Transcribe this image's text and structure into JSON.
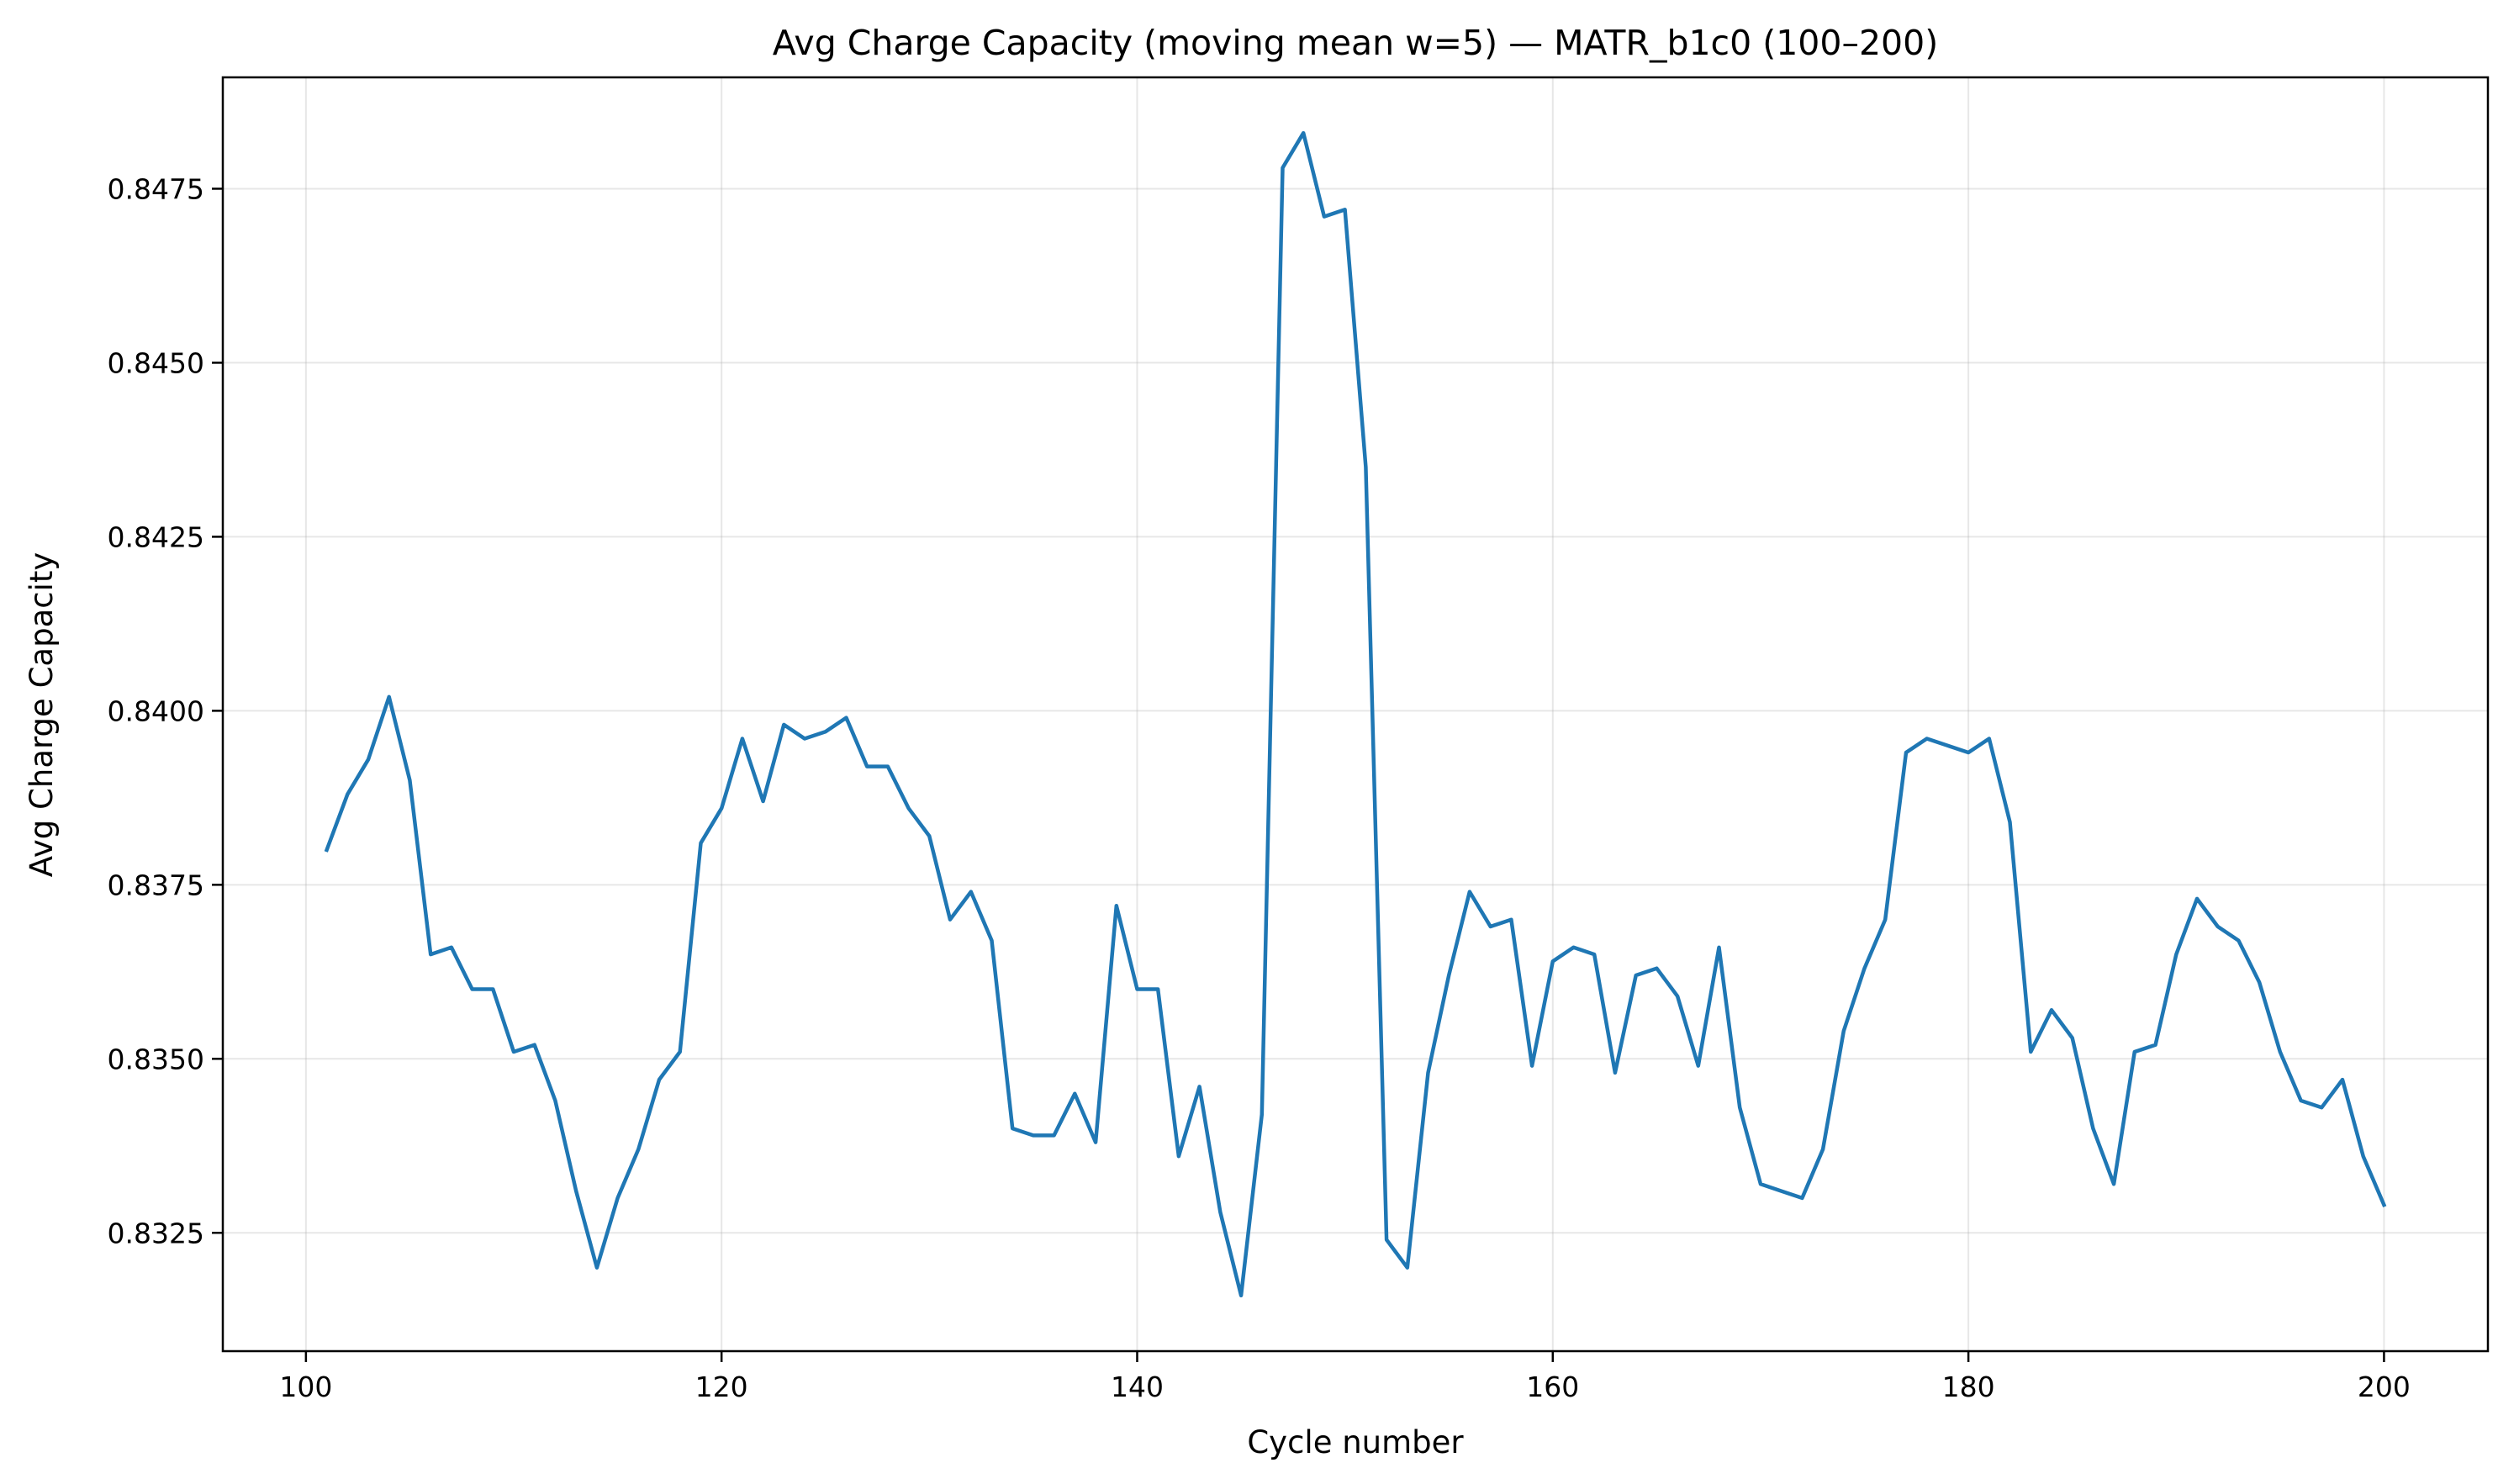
{
  "chart_data": {
    "type": "line",
    "title": "Avg Charge Capacity (moving mean w=5) — MATR_b1c0 (100–200)",
    "xlabel": "Cycle number",
    "ylabel": "Avg Charge Capacity",
    "xlim": [
      96,
      205
    ],
    "ylim": [
      0.8308,
      0.8491
    ],
    "xticks": [
      100,
      120,
      140,
      160,
      180,
      200
    ],
    "yticks": [
      0.8325,
      0.835,
      0.8375,
      0.84,
      0.8425,
      0.845,
      0.8475
    ],
    "xtick_labels": [
      "100",
      "120",
      "140",
      "160",
      "180",
      "200"
    ],
    "ytick_labels": [
      "0.8325",
      "0.8350",
      "0.8375",
      "0.8400",
      "0.8425",
      "0.8450",
      "0.8475"
    ],
    "grid": true,
    "color": "#1f77b4",
    "series": [
      {
        "x": [
          101,
          102,
          103,
          104,
          105,
          106,
          107,
          108,
          109,
          110,
          111,
          112,
          113,
          114,
          115,
          116,
          117,
          118,
          119,
          120,
          121,
          122,
          123,
          124,
          125,
          126,
          127,
          128,
          129,
          130,
          131,
          132,
          133,
          134,
          135,
          136,
          137,
          138,
          139,
          140,
          141,
          142,
          143,
          144,
          145,
          146,
          147,
          148,
          149,
          150,
          151,
          152,
          153,
          154,
          155,
          156,
          157,
          158,
          159,
          160,
          161,
          162,
          163,
          164,
          165,
          166,
          167,
          168,
          169,
          170,
          171,
          172,
          173,
          174,
          175,
          176,
          177,
          178,
          179,
          180,
          181,
          182,
          183,
          184,
          185,
          186,
          187,
          188,
          189,
          190,
          191,
          192,
          193,
          194,
          195,
          196,
          197,
          198,
          199,
          200
        ],
        "values": [
          0.838,
          0.8388,
          0.8393,
          0.8402,
          0.839,
          0.8365,
          0.8366,
          0.836,
          0.836,
          0.8351,
          0.8352,
          0.8344,
          0.8331,
          0.832,
          0.833,
          0.8337,
          0.8347,
          0.8351,
          0.8381,
          0.8386,
          0.8396,
          0.8387,
          0.8398,
          0.8396,
          0.8397,
          0.8399,
          0.8392,
          0.8392,
          0.8386,
          0.8382,
          0.837,
          0.8374,
          0.8367,
          0.834,
          0.8339,
          0.8339,
          0.8345,
          0.8338,
          0.8372,
          0.836,
          0.836,
          0.8336,
          0.8346,
          0.8328,
          0.8316,
          0.8342,
          0.8478,
          0.8483,
          0.8471,
          0.8472,
          0.8435,
          0.8324,
          0.832,
          0.8348,
          0.8362,
          0.8374,
          0.8369,
          0.837,
          0.8349,
          0.8364,
          0.8366,
          0.8365,
          0.8348,
          0.8362,
          0.8363,
          0.8359,
          0.8349,
          0.8366,
          0.8343,
          0.8332,
          0.8331,
          0.833,
          0.8337,
          0.8354,
          0.8363,
          0.837,
          0.8394,
          0.8396,
          0.8395,
          0.8394,
          0.8396,
          0.8384,
          0.8351,
          0.8357,
          0.8353,
          0.834,
          0.8332,
          0.8351,
          0.8352,
          0.8365,
          0.8373,
          0.8369,
          0.8367,
          0.8361,
          0.8351,
          0.8344,
          0.8343,
          0.8347,
          0.8336,
          0.8329
        ]
      }
    ]
  }
}
